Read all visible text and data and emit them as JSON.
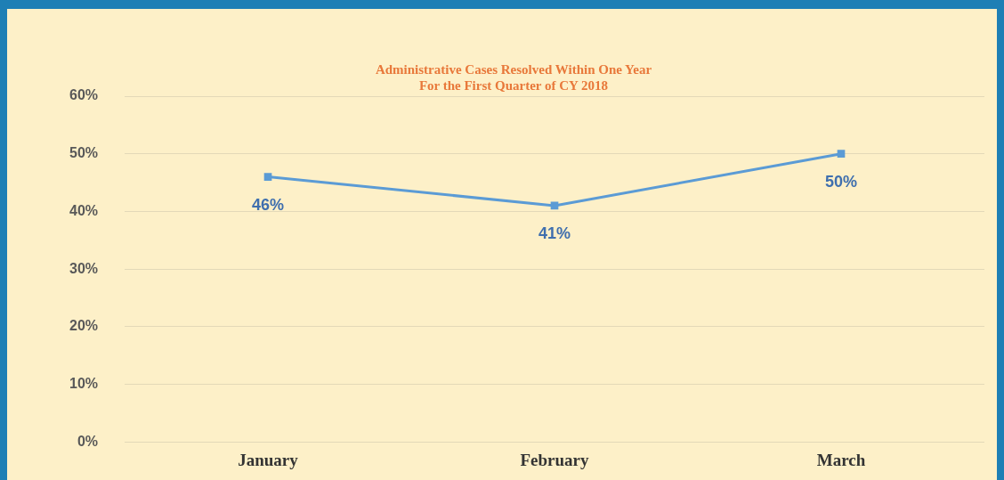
{
  "chart_data": {
    "type": "line",
    "title": "Administrative Cases Resolved Within One Year\nFor the First Quarter of CY 2018",
    "categories": [
      "January",
      "February",
      "March"
    ],
    "series": [
      {
        "color": "#5b9bd5",
        "values": [
          46,
          41,
          50
        ],
        "value_labels": [
          "46%",
          "41%",
          "50%"
        ]
      }
    ],
    "ylim": [
      0,
      60
    ],
    "yticks": [
      {
        "value": 0,
        "label": "0%"
      },
      {
        "value": 10,
        "label": "10%"
      },
      {
        "value": 20,
        "label": "20%"
      },
      {
        "value": 30,
        "label": "30%"
      },
      {
        "value": 40,
        "label": "40%"
      },
      {
        "value": 50,
        "label": "50%"
      },
      {
        "value": 60,
        "label": "60%"
      }
    ],
    "grid": "y",
    "marker": "square",
    "line_style": "solid",
    "legend": false
  }
}
